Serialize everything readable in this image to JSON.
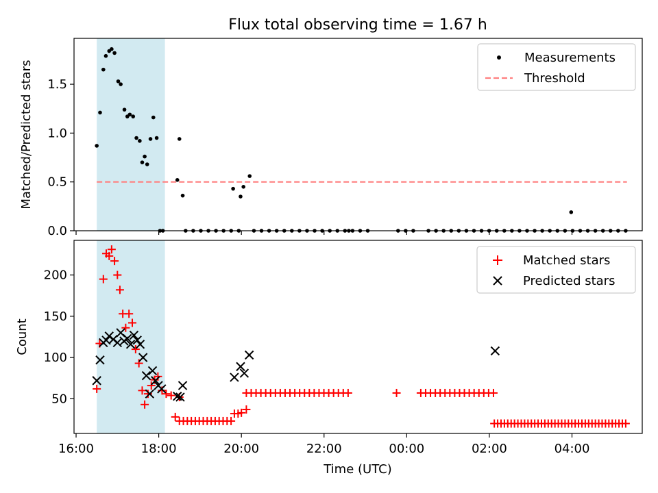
{
  "chart_data": [
    {
      "type": "scatter",
      "panel": "top",
      "title": "Flux total observing time = 1.67 h",
      "xlabel": "",
      "ylabel": "Matched/Predicted stars",
      "xlim": [
        15.95,
        29.7
      ],
      "ylim": [
        0,
        1.97
      ],
      "yticks": [
        0.0,
        0.5,
        1.0,
        1.5
      ],
      "ytick_labels": [
        "0.0",
        "0.5",
        "1.0",
        "1.5"
      ],
      "highlight_span": {
        "x": [
          16.5,
          18.15
        ],
        "color": "#add8e6"
      },
      "threshold": {
        "value": 0.5,
        "x": [
          16.5,
          29.33
        ],
        "color": "#ff7f7f"
      },
      "legend": {
        "placement": "upper right",
        "entries": [
          "Measurements",
          "Threshold"
        ]
      },
      "series": [
        {
          "name": "Measurements",
          "marker": "dot",
          "color": "#000000",
          "x": [
            16.5,
            16.58,
            16.66,
            16.72,
            16.8,
            16.86,
            16.93,
            17.02,
            17.08,
            17.17,
            17.24,
            17.3,
            17.38,
            17.46,
            17.54,
            17.6,
            17.66,
            17.72,
            17.8,
            17.87,
            17.95,
            18.03,
            18.45,
            18.5,
            18.58,
            19.8,
            19.98,
            20.05,
            20.2,
            22.6,
            27.98
          ],
          "y": [
            0.87,
            1.21,
            1.65,
            1.79,
            1.84,
            1.86,
            1.82,
            1.53,
            1.5,
            1.24,
            1.17,
            1.19,
            1.17,
            0.95,
            0.92,
            0.7,
            0.76,
            0.68,
            0.94,
            1.16,
            0.95,
            0.0,
            0.52,
            0.94,
            0.36,
            0.43,
            0.35,
            0.45,
            0.56,
            0.0,
            0.19
          ]
        },
        {
          "name": "Measurements (zero segment)",
          "marker": "dot",
          "color": "#000000",
          "x_start": 18.1,
          "x_end": 29.3,
          "count": 62,
          "y": 0,
          "gaps": [
            [
              18.2,
              18.6
            ],
            [
              20.0,
              20.2
            ],
            [
              23.1,
              23.7
            ],
            [
              24.2,
              24.4
            ]
          ]
        }
      ]
    },
    {
      "type": "scatter",
      "panel": "bottom",
      "xlabel": "Time (UTC)",
      "ylabel": "Count",
      "xlim": [
        15.95,
        29.7
      ],
      "ylim": [
        8,
        242
      ],
      "yticks": [
        50,
        100,
        150,
        200
      ],
      "ytick_labels": [
        "50",
        "100",
        "150",
        "200"
      ],
      "xticks": [
        16,
        18,
        20,
        22,
        24,
        26,
        28
      ],
      "xtick_labels": [
        "16:00",
        "18:00",
        "20:00",
        "22:00",
        "00:00",
        "02:00",
        "04:00"
      ],
      "highlight_span": {
        "x": [
          16.5,
          18.15
        ],
        "color": "#add8e6"
      },
      "legend": {
        "placement": "upper right",
        "entries": [
          "Matched stars",
          "Predicted stars"
        ]
      },
      "series": [
        {
          "name": "Matched stars",
          "marker": "plus",
          "color": "#ff0000",
          "x": [
            16.5,
            16.57,
            16.66,
            16.73,
            16.8,
            16.86,
            16.93,
            17.0,
            17.06,
            17.13,
            17.2,
            17.28,
            17.36,
            17.44,
            17.52,
            17.6,
            17.66,
            17.74,
            17.82,
            17.9,
            17.98,
            18.08,
            18.18,
            18.3,
            18.4,
            18.5,
            19.83,
            19.92,
            20.0,
            20.12
          ],
          "y": [
            62,
            117,
            195,
            226,
            223,
            231,
            217,
            200,
            182,
            153,
            136,
            153,
            142,
            110,
            93,
            60,
            43,
            56,
            66,
            73,
            77,
            60,
            56,
            54,
            28,
            52,
            32,
            32,
            33,
            37
          ],
          "segments": [
            {
              "x_start": 18.5,
              "x_end": 19.75,
              "count": 14,
              "y": 23
            },
            {
              "x_start": 20.12,
              "x_end": 26.1,
              "count": 52,
              "y": 57,
              "gaps": [
                [
                  22.65,
                  23.7
                ],
                [
                  23.85,
                  24.3
                ]
              ]
            },
            {
              "x_start": 26.12,
              "x_end": 29.3,
              "count": 40,
              "y": 20
            }
          ]
        },
        {
          "name": "Predicted stars",
          "marker": "x",
          "color": "#000000",
          "x": [
            16.5,
            16.58,
            16.66,
            16.73,
            16.8,
            16.9,
            17.0,
            17.08,
            17.16,
            17.24,
            17.32,
            17.4,
            17.48,
            17.55,
            17.62,
            17.7,
            17.78,
            17.85,
            17.92,
            17.99,
            18.07,
            18.45,
            18.52,
            18.58,
            19.83,
            19.98,
            20.07,
            20.19,
            26.14
          ],
          "y": [
            72,
            97,
            118,
            121,
            126,
            122,
            118,
            130,
            120,
            123,
            116,
            127,
            121,
            116,
            100,
            78,
            56,
            84,
            72,
            66,
            62,
            53,
            52,
            66,
            76,
            89,
            81,
            103,
            108
          ]
        }
      ]
    }
  ]
}
